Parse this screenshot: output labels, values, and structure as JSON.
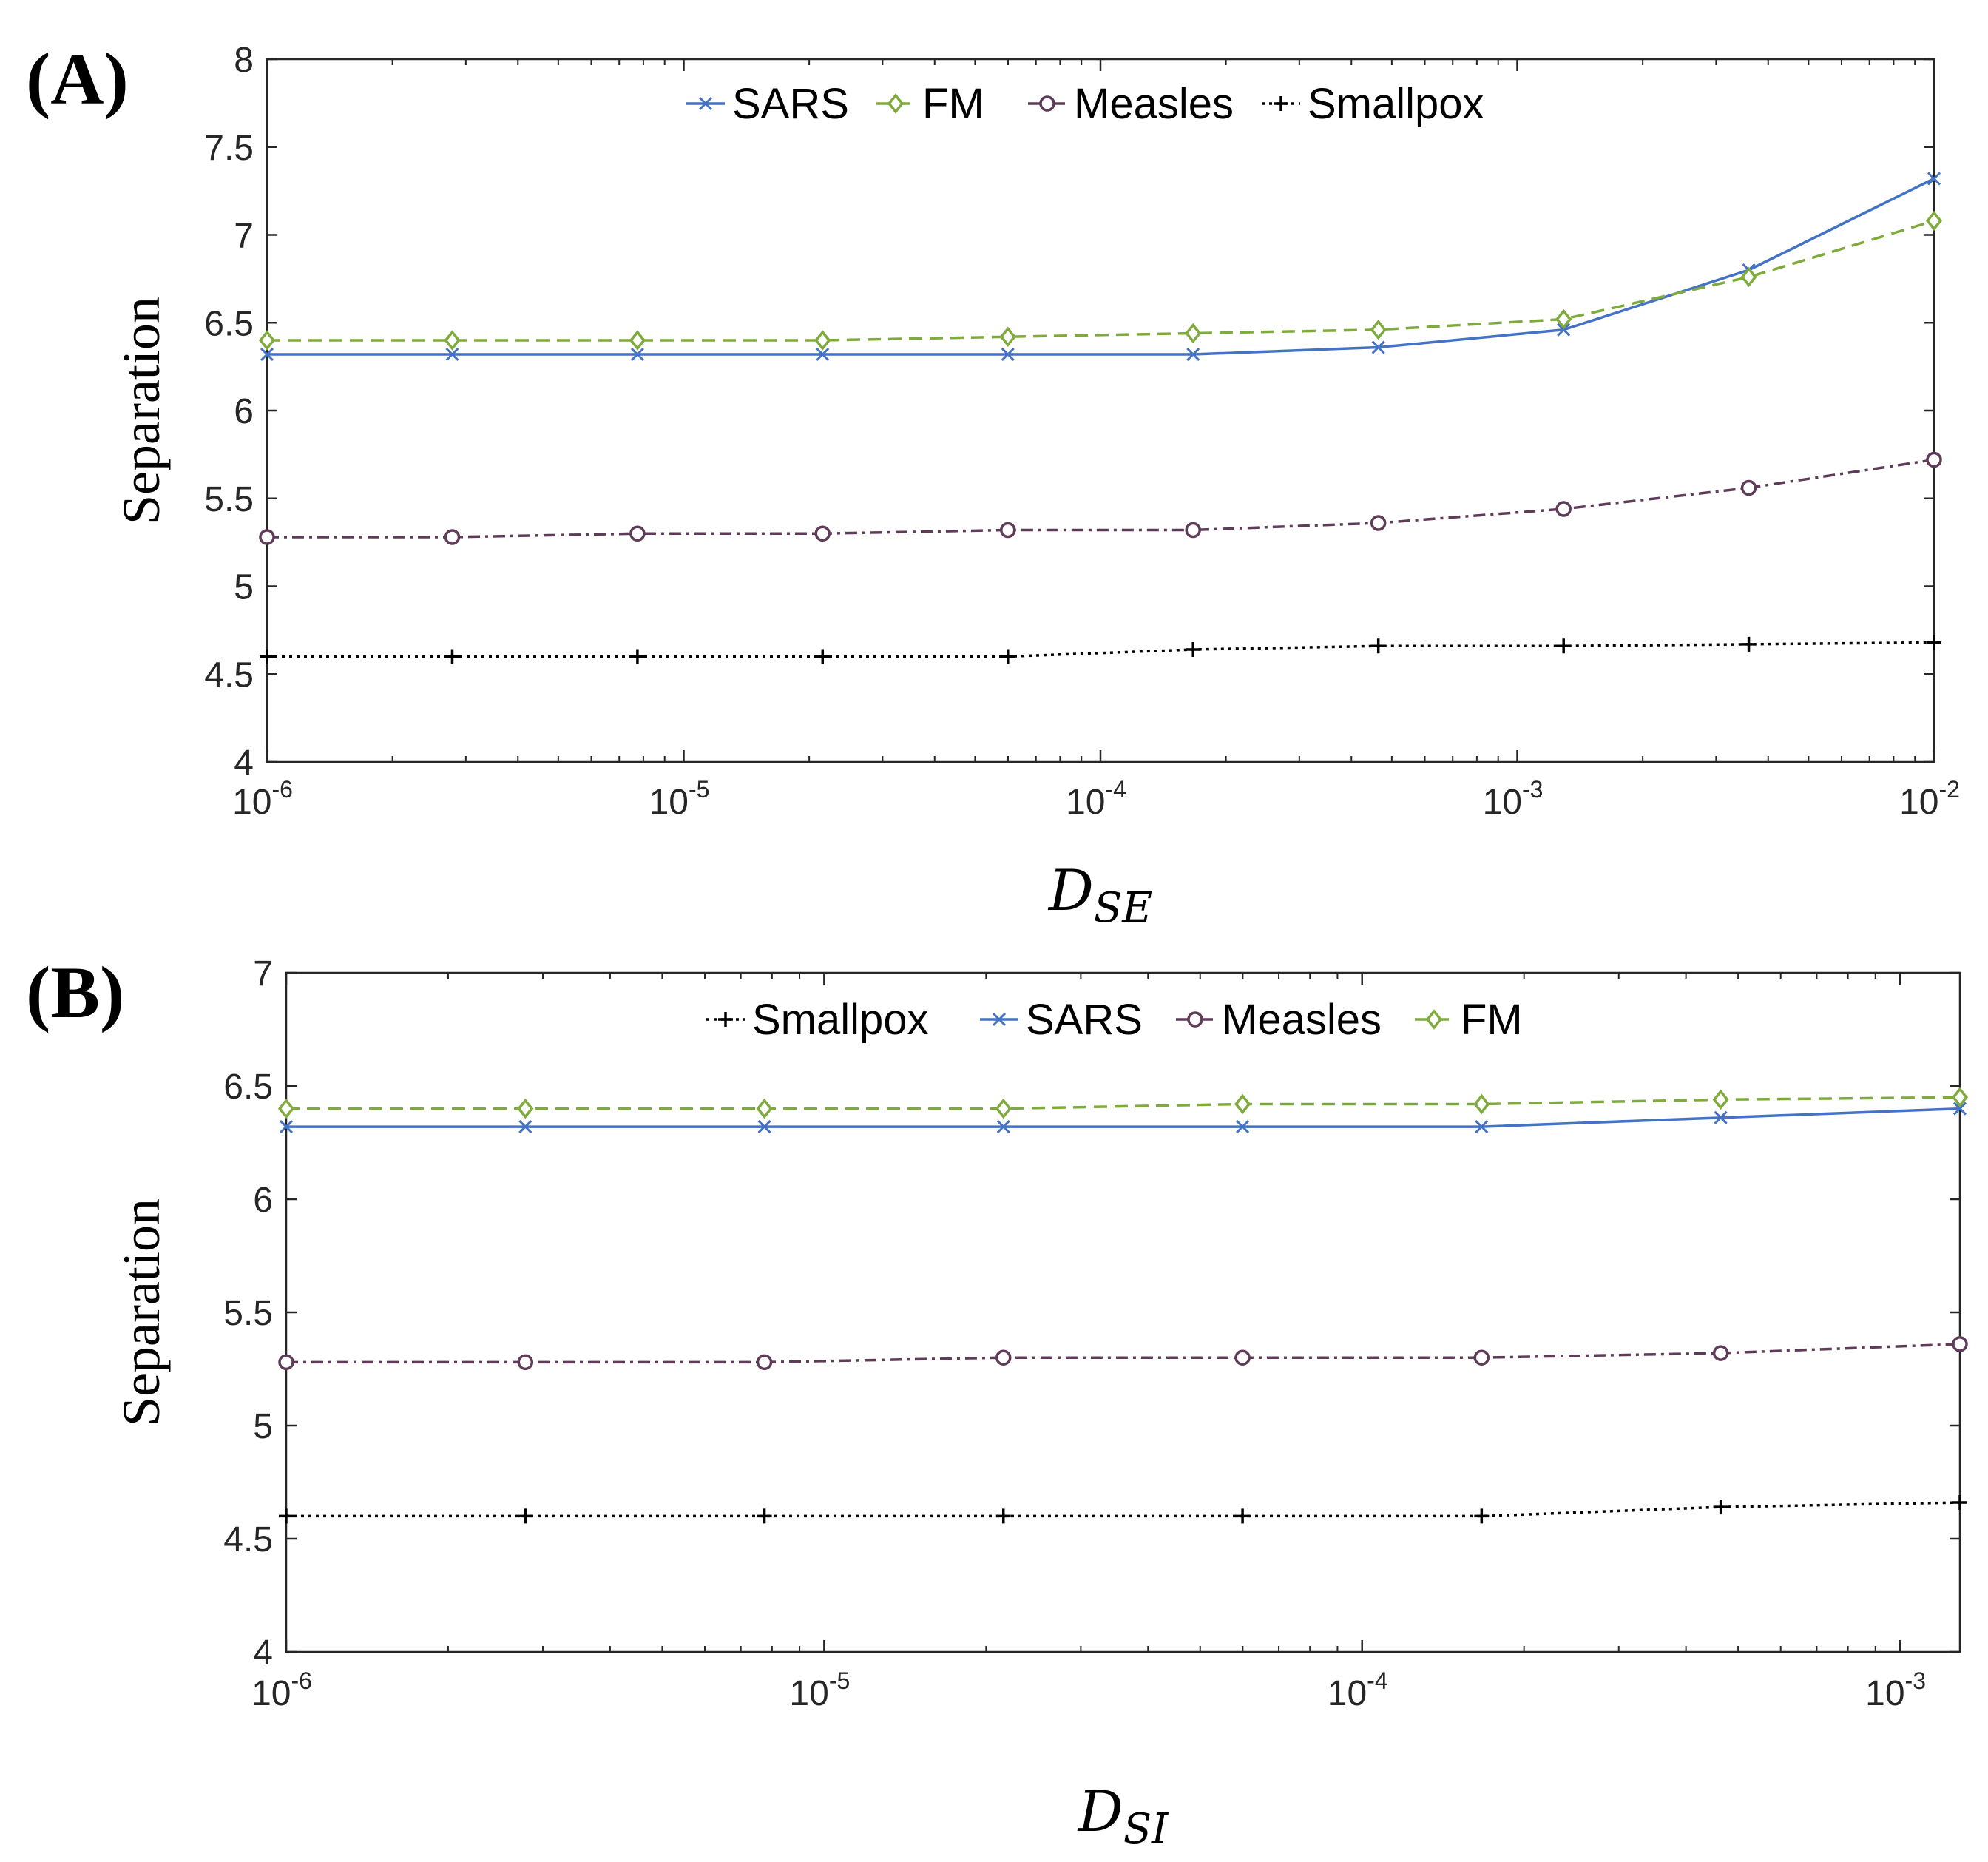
{
  "chart_data": [
    {
      "type": "line",
      "panel_label": "(A)",
      "xscale": "log",
      "xlim": [
        1e-06,
        0.01
      ],
      "ylim": [
        4,
        8
      ],
      "yticks": [
        "4",
        "4.5",
        "5",
        "5.5",
        "6",
        "6.5",
        "7",
        "7.5",
        "8"
      ],
      "xticks": [
        {
          "base": "10",
          "exp": "-6"
        },
        {
          "base": "10",
          "exp": "-5"
        },
        {
          "base": "10",
          "exp": "-4"
        },
        {
          "base": "10",
          "exp": "-3"
        },
        {
          "base": "10",
          "exp": "-2"
        }
      ],
      "ylabel": "Separation",
      "xlabel_main": "D",
      "xlabel_sub": "SE",
      "legend_position": "top",
      "x": [
        1e-06,
        2.783e-06,
        7.743e-06,
        2.154e-05,
        5.995e-05,
        0.0001668,
        0.0004642,
        0.001292,
        0.003594,
        0.01
      ],
      "series": [
        {
          "name": "SARS",
          "color": "#4472c4",
          "marker": "x",
          "dash": "solid",
          "values": [
            6.32,
            6.32,
            6.32,
            6.32,
            6.32,
            6.32,
            6.36,
            6.46,
            6.8,
            7.32
          ]
        },
        {
          "name": "FM",
          "color": "#7faa3c",
          "marker": "diamond",
          "dash": "dashed",
          "values": [
            6.4,
            6.4,
            6.4,
            6.4,
            6.42,
            6.44,
            6.46,
            6.52,
            6.76,
            7.08
          ]
        },
        {
          "name": "Measles",
          "color": "#5e3c58",
          "marker": "circle",
          "dash": "dashdot",
          "values": [
            5.28,
            5.28,
            5.3,
            5.3,
            5.32,
            5.32,
            5.36,
            5.44,
            5.56,
            5.72
          ]
        },
        {
          "name": "Smallpox",
          "color": "#000000",
          "marker": "plus",
          "dash": "dotted",
          "values": [
            4.6,
            4.6,
            4.6,
            4.6,
            4.6,
            4.64,
            4.66,
            4.66,
            4.67,
            4.68
          ]
        }
      ]
    },
    {
      "type": "line",
      "panel_label": "(B)",
      "xscale": "log",
      "xlim": [
        1e-06,
        0.001292
      ],
      "ylim": [
        4,
        7
      ],
      "yticks": [
        "4",
        "4.5",
        "5",
        "5.5",
        "6",
        "6.5",
        "7"
      ],
      "xticks": [
        {
          "base": "10",
          "exp": "-6"
        },
        {
          "base": "10",
          "exp": "-5"
        },
        {
          "base": "10",
          "exp": "-4"
        },
        {
          "base": "10",
          "exp": "-3"
        }
      ],
      "ylabel": "Separation",
      "xlabel_main": "D",
      "xlabel_sub": "SI",
      "legend_position": "top",
      "x": [
        1e-06,
        2.783e-06,
        7.743e-06,
        2.154e-05,
        5.995e-05,
        0.0001668,
        0.0004642,
        0.001292
      ],
      "series": [
        {
          "name": "Smallpox",
          "color": "#000000",
          "marker": "plus",
          "dash": "dotted",
          "values": [
            4.6,
            4.6,
            4.6,
            4.6,
            4.6,
            4.6,
            4.64,
            4.66
          ]
        },
        {
          "name": "SARS",
          "color": "#4472c4",
          "marker": "x",
          "dash": "solid",
          "values": [
            6.32,
            6.32,
            6.32,
            6.32,
            6.32,
            6.32,
            6.36,
            6.4
          ]
        },
        {
          "name": "Measles",
          "color": "#5e3c58",
          "marker": "circle",
          "dash": "dashdot",
          "values": [
            5.28,
            5.28,
            5.28,
            5.3,
            5.3,
            5.3,
            5.32,
            5.36
          ]
        },
        {
          "name": "FM",
          "color": "#7faa3c",
          "marker": "diamond",
          "dash": "dashed",
          "values": [
            6.4,
            6.4,
            6.4,
            6.4,
            6.42,
            6.42,
            6.44,
            6.45
          ]
        }
      ]
    }
  ]
}
